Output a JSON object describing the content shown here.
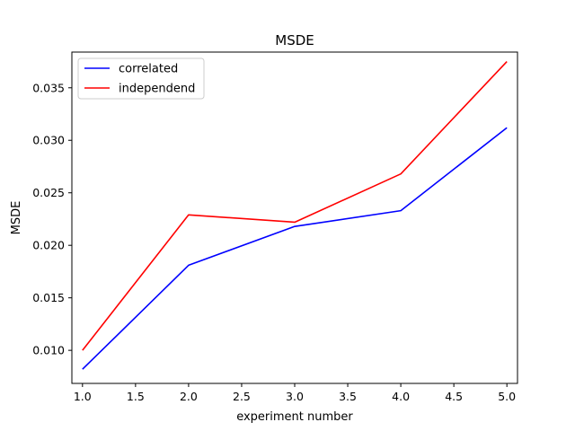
{
  "chart_data": {
    "type": "line",
    "title": "MSDE",
    "xlabel": "experiment number",
    "ylabel": "MSDE",
    "x": [
      1.0,
      2.0,
      3.0,
      4.0,
      5.0
    ],
    "xlim": [
      0.9,
      5.1
    ],
    "ylim": [
      0.00685,
      0.0384
    ],
    "xticks": [
      1.0,
      1.5,
      2.0,
      2.5,
      3.0,
      3.5,
      4.0,
      4.5,
      5.0
    ],
    "xtick_labels": [
      "1.0",
      "1.5",
      "2.0",
      "2.5",
      "3.0",
      "3.5",
      "4.0",
      "4.5",
      "5.0"
    ],
    "yticks": [
      0.01,
      0.015,
      0.02,
      0.025,
      0.03,
      0.035
    ],
    "ytick_labels": [
      "0.010",
      "0.015",
      "0.020",
      "0.025",
      "0.030",
      "0.035"
    ],
    "grid": false,
    "legend_position": "top-left",
    "series": [
      {
        "name": "correlated",
        "color": "#0000ff",
        "values": [
          0.0082,
          0.0181,
          0.0218,
          0.0233,
          0.0312
        ]
      },
      {
        "name": "independend",
        "color": "#ff0000",
        "values": [
          0.01,
          0.0229,
          0.0222,
          0.0268,
          0.0375
        ]
      }
    ]
  }
}
